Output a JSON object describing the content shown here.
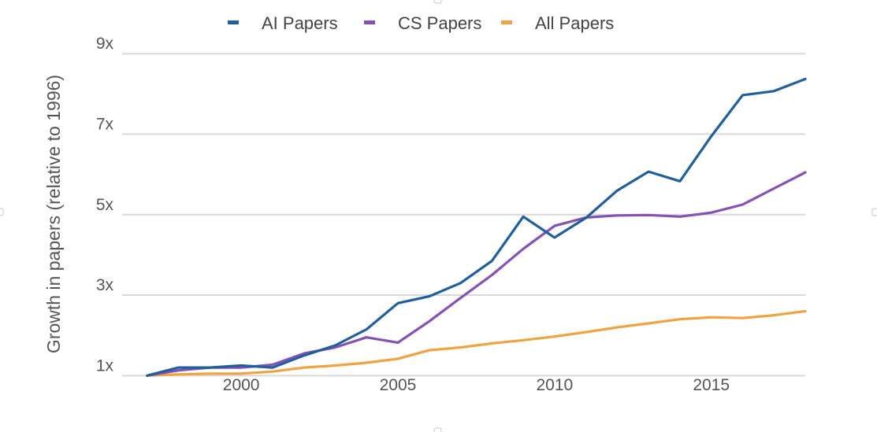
{
  "chart_data": {
    "type": "line",
    "title": "",
    "xlabel": "",
    "ylabel": "Growth in papers (relative to 1996)",
    "xlim": [
      1996.2,
      2018.0
    ],
    "ylim": [
      0.85,
      9.2
    ],
    "x_ticks": [
      2000,
      2005,
      2010,
      2015
    ],
    "x_tick_labels": [
      "2000",
      "2005",
      "2010",
      "2015"
    ],
    "y_ticks": [
      1,
      3,
      5,
      7,
      9
    ],
    "y_tick_labels": [
      "1x",
      "3x",
      "5x",
      "7x",
      "9x"
    ],
    "grid": "horizontal",
    "legend_position": "top-center",
    "x": [
      1997,
      1998,
      1999,
      2000,
      2001,
      2002,
      2003,
      2004,
      2005,
      2006,
      2007,
      2008,
      2009,
      2010,
      2011,
      2012,
      2013,
      2014,
      2015,
      2016,
      2017,
      2018
    ],
    "series": [
      {
        "name": "AI Papers",
        "color": "#1f5f9e",
        "values": [
          1.0,
          1.2,
          1.2,
          1.25,
          1.2,
          1.5,
          1.75,
          2.15,
          2.8,
          2.97,
          3.3,
          3.85,
          4.95,
          4.43,
          4.92,
          5.6,
          6.07,
          5.83,
          6.95,
          7.97,
          8.07,
          8.37
        ]
      },
      {
        "name": "CS Papers",
        "color": "#8551b6",
        "values": [
          1.0,
          1.13,
          1.2,
          1.2,
          1.27,
          1.55,
          1.7,
          1.95,
          1.82,
          2.35,
          2.93,
          3.5,
          4.15,
          4.72,
          4.93,
          4.98,
          4.99,
          4.95,
          5.05,
          5.25,
          5.65,
          6.05
        ]
      },
      {
        "name": "All Papers",
        "color": "#f0a340",
        "values": [
          1.0,
          1.03,
          1.05,
          1.05,
          1.1,
          1.2,
          1.25,
          1.32,
          1.42,
          1.63,
          1.7,
          1.8,
          1.88,
          1.97,
          2.08,
          2.2,
          2.3,
          2.4,
          2.45,
          2.43,
          2.5,
          2.6
        ]
      }
    ]
  }
}
